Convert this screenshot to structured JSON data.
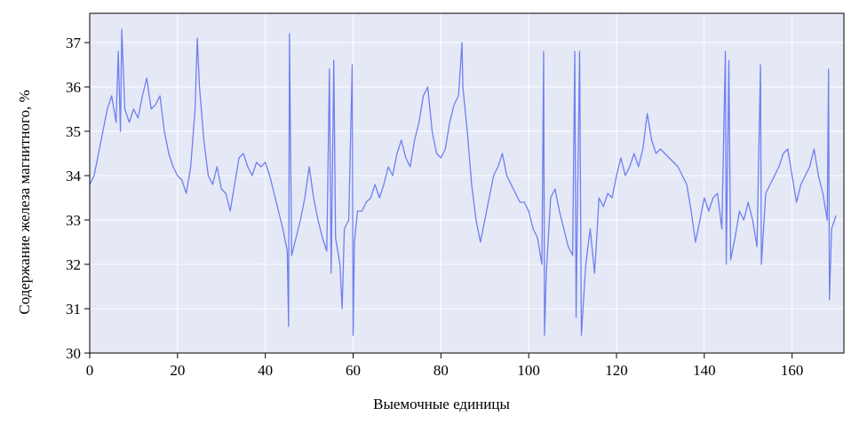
{
  "chart_data": {
    "type": "line",
    "x_label": "Выемочные единицы",
    "y_label": "Содержание железа магнитного, %",
    "xlim": [
      0,
      171.8
    ],
    "ylim": [
      30,
      37.66
    ],
    "xticks": [
      0,
      20,
      40,
      60,
      80,
      100,
      120,
      140,
      160
    ],
    "yticks": [
      30,
      31,
      32,
      33,
      34,
      35,
      36,
      37
    ],
    "grid": true,
    "series": [
      {
        "color": "#6f7ff0",
        "x": [
          0,
          1,
          2,
          3,
          4,
          5,
          6,
          6.5,
          7,
          7.3,
          8,
          9,
          10,
          11,
          12,
          13,
          14,
          15,
          16,
          17,
          18,
          19,
          20,
          21,
          22,
          23,
          24,
          24.5,
          25,
          26,
          27,
          28,
          29,
          30,
          31,
          32,
          33,
          34,
          35,
          36,
          37,
          38,
          39,
          40,
          41,
          42,
          43,
          44,
          45,
          45.3,
          45.5,
          46,
          47,
          48,
          49,
          50,
          51,
          52,
          53,
          54,
          54.6,
          55,
          55.6,
          56,
          57,
          57.5,
          58,
          59,
          59.8,
          60,
          60.3,
          61,
          62,
          63,
          64,
          65,
          66,
          67,
          68,
          69,
          70,
          71,
          72,
          73,
          74,
          75,
          76,
          77,
          78,
          79,
          80,
          81,
          82,
          83,
          84,
          84.8,
          85,
          86,
          87,
          88,
          89,
          90,
          91,
          92,
          93,
          94,
          95,
          96,
          97,
          98,
          99,
          100,
          101,
          102,
          103,
          103.4,
          103.6,
          104,
          105,
          106,
          107,
          108,
          109,
          110,
          110.5,
          110.8,
          111,
          111.6,
          112,
          113,
          114,
          115,
          115.5,
          116,
          117,
          118,
          119,
          120,
          121,
          122,
          123,
          124,
          125,
          126,
          127,
          128,
          129,
          130,
          131,
          132,
          133,
          134,
          135,
          136,
          137,
          138,
          139,
          140,
          141,
          142,
          143,
          144,
          144.8,
          145,
          145.6,
          146,
          147,
          148,
          149,
          150,
          151,
          152,
          152.8,
          153,
          154,
          155,
          156,
          157,
          158,
          159,
          160,
          161,
          162,
          163,
          164,
          165,
          166,
          167,
          168,
          168.3,
          168.5,
          169,
          170
        ],
        "values": [
          33.8,
          34.0,
          34.5,
          35.0,
          35.5,
          35.8,
          35.2,
          36.8,
          35.0,
          37.3,
          35.5,
          35.2,
          35.5,
          35.3,
          35.8,
          36.2,
          35.5,
          35.6,
          35.8,
          35.0,
          34.5,
          34.2,
          34.0,
          33.9,
          33.6,
          34.2,
          35.5,
          37.1,
          36.0,
          34.8,
          34.0,
          33.8,
          34.2,
          33.7,
          33.6,
          33.2,
          33.8,
          34.4,
          34.5,
          34.2,
          34.0,
          34.3,
          34.2,
          34.3,
          34.0,
          33.6,
          33.2,
          32.8,
          32.3,
          30.6,
          37.2,
          32.2,
          32.6,
          33.0,
          33.5,
          34.2,
          33.5,
          33.0,
          32.6,
          32.3,
          36.4,
          31.8,
          36.6,
          32.6,
          32.0,
          31.0,
          32.8,
          33.0,
          36.5,
          30.4,
          32.5,
          33.2,
          33.2,
          33.4,
          33.5,
          33.8,
          33.5,
          33.8,
          34.2,
          34.0,
          34.5,
          34.8,
          34.4,
          34.2,
          34.8,
          35.2,
          35.8,
          36.0,
          35.0,
          34.5,
          34.4,
          34.6,
          35.2,
          35.6,
          35.8,
          37.0,
          36.0,
          35.0,
          33.8,
          33.0,
          32.5,
          33.0,
          33.5,
          34.0,
          34.2,
          34.5,
          34.0,
          33.8,
          33.6,
          33.4,
          33.4,
          33.2,
          32.8,
          32.6,
          32.0,
          36.8,
          30.4,
          31.8,
          33.5,
          33.7,
          33.2,
          32.8,
          32.4,
          32.2,
          36.8,
          30.8,
          32.5,
          36.8,
          30.4,
          32.0,
          32.8,
          31.8,
          32.6,
          33.5,
          33.3,
          33.6,
          33.5,
          34.0,
          34.4,
          34.0,
          34.2,
          34.5,
          34.2,
          34.6,
          35.4,
          34.8,
          34.5,
          34.6,
          34.5,
          34.4,
          34.3,
          34.2,
          34.0,
          33.8,
          33.2,
          32.5,
          33.0,
          33.5,
          33.2,
          33.5,
          33.6,
          32.8,
          36.8,
          32.0,
          36.6,
          32.1,
          32.6,
          33.2,
          33.0,
          33.4,
          33.0,
          32.4,
          36.5,
          32.0,
          33.6,
          33.8,
          34.0,
          34.2,
          34.5,
          34.6,
          34.0,
          33.4,
          33.8,
          34.0,
          34.2,
          34.6,
          34.0,
          33.6,
          33.0,
          36.4,
          31.2,
          32.8,
          33.1
        ]
      }
    ]
  }
}
